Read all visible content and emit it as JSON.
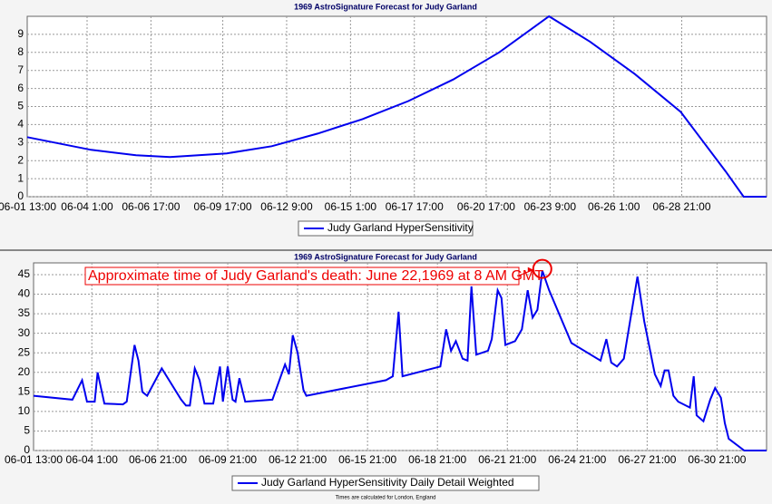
{
  "chart_data": [
    {
      "type": "line",
      "title": "1969 AstroSignature Forecast for Judy Garland",
      "note": "",
      "series": [
        {
          "name": "Judy Garland HyperSensitivity",
          "color": "#0000ee",
          "x": [
            "06-01 13:00",
            "06-04 05:00",
            "06-06 02:00",
            "06-07 12:00",
            "06-09 21:00",
            "06-11 18:00",
            "06-13 16:00",
            "06-15 13:00",
            "06-17 11:00",
            "06-19 08:00",
            "06-21 06:00",
            "06-23 08:00",
            "06-25 01:00",
            "06-26 22:00",
            "06-28 20:00",
            "06-30 17:00",
            "07-01 11:00",
            "07-02 10:00"
          ],
          "values": [
            3.3,
            2.6,
            2.3,
            2.2,
            2.4,
            2.8,
            3.5,
            4.3,
            5.3,
            6.5,
            8.0,
            10,
            8.6,
            6.8,
            4.7,
            1.4,
            0,
            0
          ]
        }
      ],
      "xlim": [
        "06-01 13:00",
        "07-02 10:00"
      ],
      "xticks": [
        "06-01 13:00",
        "06-04 1:00",
        "06-06 17:00",
        "06-09 17:00",
        "06-12 9:00",
        "06-15 1:00",
        "06-17 17:00",
        "06-20 17:00",
        "06-23 9:00",
        "06-26 1:00",
        "06-28 21:00"
      ],
      "ylim": [
        0,
        10
      ],
      "yticks": [
        0,
        1,
        2,
        3,
        4,
        5,
        6,
        7,
        8,
        9
      ],
      "grid": true
    },
    {
      "type": "line",
      "title": "1969 AstroSignature Forecast for Judy Garland",
      "note": "Times are calculated for London, England",
      "annotation": "Approximate time of Judy Garland's death: June 22,1969 at 8 AM GMT",
      "series": [
        {
          "name": "Judy Garland HyperSensitivity Daily Detail Weighted",
          "color": "#0000ee",
          "x": [
            "06-01 13:00",
            "06-03 05:00",
            "06-03 15:00",
            "06-03 20:00",
            "06-04 04:00",
            "06-04 07:00",
            "06-04 14:00",
            "06-05 09:00",
            "06-05 13:00",
            "06-05 21:00",
            "06-06 01:00",
            "06-06 05:00",
            "06-06 10:00",
            "06-07 01:00",
            "06-07 21:00",
            "06-08 02:00",
            "06-08 06:00",
            "06-08 11:00",
            "06-08 16:00",
            "06-08 21:00",
            "06-09 06:00",
            "06-09 13:00",
            "06-09 16:00",
            "06-09 21:00",
            "06-10 02:00",
            "06-10 05:00",
            "06-10 09:00",
            "06-10 15:00",
            "06-11 19:00",
            "06-12 08:00",
            "06-12 12:00",
            "06-12 16:00",
            "06-12 21:00",
            "06-13 03:00",
            "06-13 06:00",
            "06-16 16:00",
            "06-16 23:00",
            "06-17 05:00",
            "06-17 09:00",
            "06-19 00:00",
            "06-19 06:00",
            "06-19 11:00",
            "06-19 16:00",
            "06-19 23:00",
            "06-20 04:00",
            "06-20 08:00",
            "06-20 13:00",
            "06-21 01:00",
            "06-21 05:00",
            "06-21 11:00",
            "06-21 15:00",
            "06-21 19:00",
            "06-22 05:00",
            "06-22 12:00",
            "06-22 18:00",
            "06-22 23:00",
            "06-23 04:00",
            "06-23 09:00",
            "06-23 16:00",
            "06-24 15:00",
            "06-25 21:00",
            "06-26 03:00",
            "06-26 08:00",
            "06-26 14:00",
            "06-26 21:00",
            "06-27 11:00",
            "06-27 18:00",
            "06-28 05:00",
            "06-28 11:00",
            "06-28 15:00",
            "06-28 19:00",
            "06-29 00:00",
            "06-29 05:00",
            "06-29 17:00",
            "06-29 21:00",
            "06-30 00:00",
            "06-30 07:00",
            "06-30 14:00",
            "06-30 19:00",
            "07-01 01:00",
            "07-01 05:00",
            "07-01 09:00",
            "07-02 01:00",
            "07-03 00:00"
          ],
          "values": [
            14,
            13,
            18,
            12.5,
            12.5,
            20,
            12,
            11.8,
            12.5,
            27,
            23,
            15,
            14,
            21,
            13,
            11.5,
            11.5,
            21,
            18,
            12,
            12,
            21.5,
            12.5,
            21.5,
            13,
            12.5,
            18.5,
            12.5,
            13,
            22,
            19.5,
            29.5,
            25,
            15.5,
            14,
            18,
            19,
            35.5,
            19,
            21.5,
            31,
            25.5,
            28,
            23.5,
            23,
            42,
            24.5,
            25.5,
            28.5,
            41,
            39,
            27,
            28,
            31,
            41,
            34,
            36,
            46,
            41,
            27.5,
            23,
            28.5,
            22.5,
            21.5,
            23.5,
            44.5,
            33,
            19.5,
            16.5,
            20.5,
            20.5,
            14,
            12.5,
            11,
            19,
            9,
            7.5,
            13,
            16,
            13.5,
            7,
            3,
            0,
            0
          ]
        }
      ],
      "xlim": [
        "06-01 13:00",
        "07-03 00:00"
      ],
      "xticks": [
        "06-01 13:00",
        "06-04 1:00",
        "06-06 21:00",
        "06-09 21:00",
        "06-12 21:00",
        "06-15 21:00",
        "06-18 21:00",
        "06-21 21:00",
        "06-24 21:00",
        "06-27 21:00",
        "06-30 21:00"
      ],
      "ylim": [
        0,
        48
      ],
      "yticks": [
        0,
        5,
        10,
        15,
        20,
        25,
        30,
        35,
        40,
        45
      ],
      "grid": true
    }
  ]
}
